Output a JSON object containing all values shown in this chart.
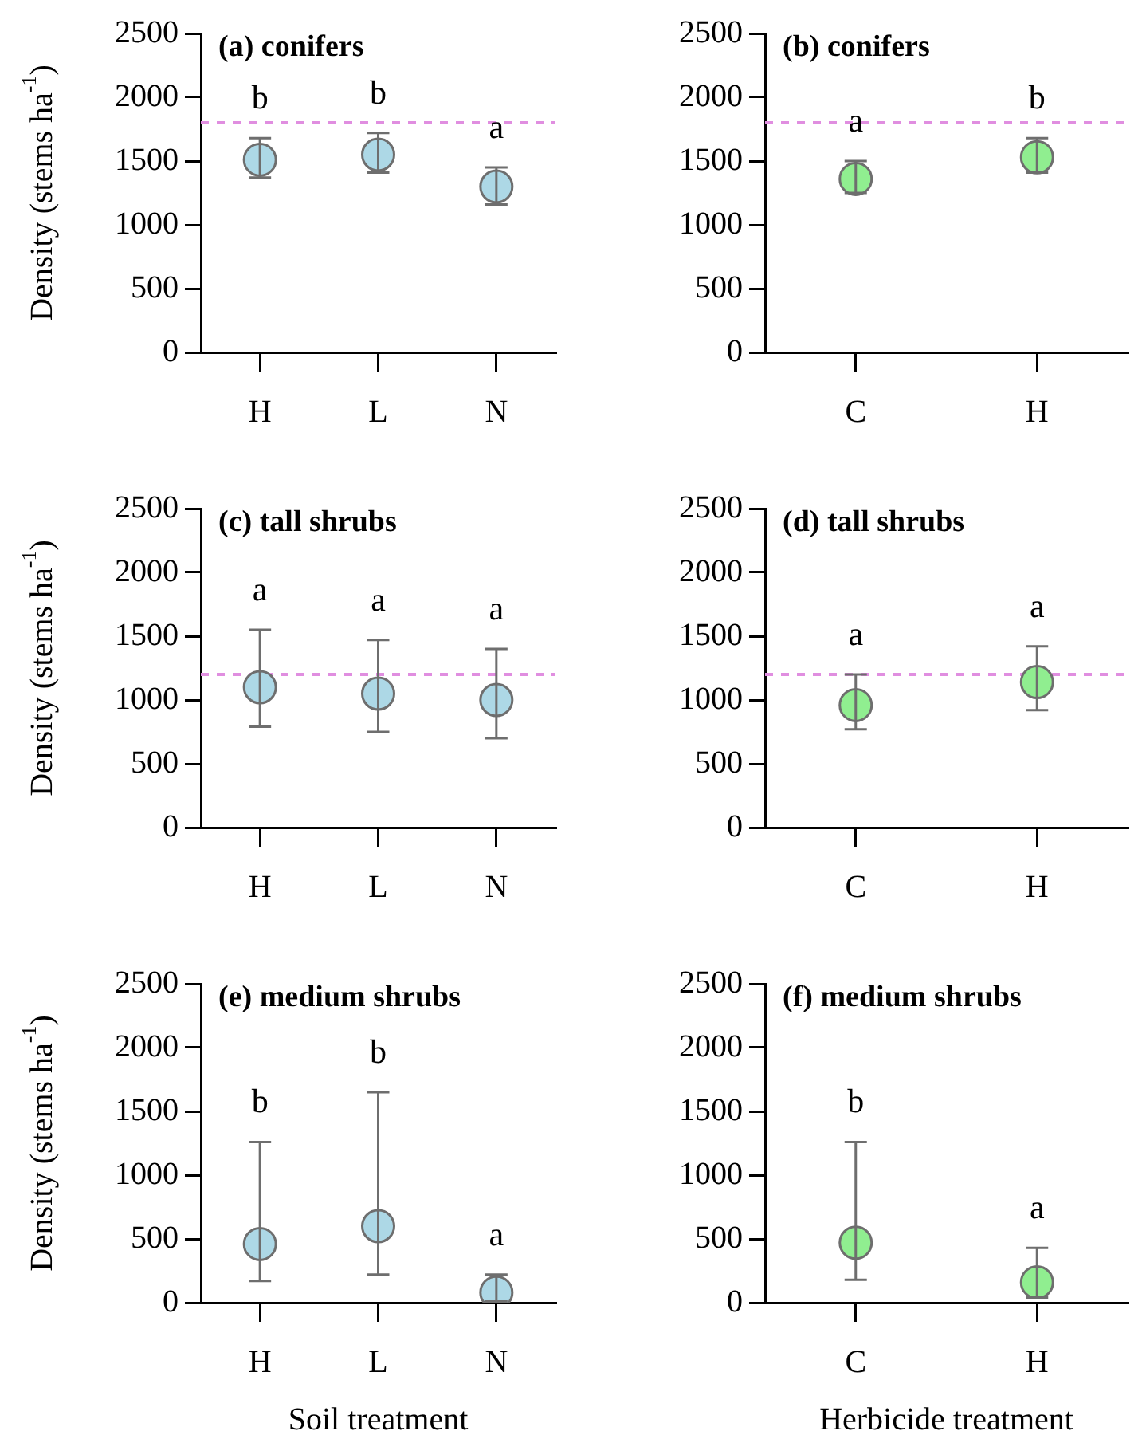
{
  "chart_data": [
    {
      "type": "scatter",
      "title": "(a) conifers",
      "ylabel": "Density (stems ha$^{-1}$)",
      "categories": [
        "H",
        "L",
        "N"
      ],
      "values": [
        1510,
        1550,
        1300
      ],
      "errors": [
        [
          1370,
          1680
        ],
        [
          1410,
          1720
        ],
        [
          1160,
          1450
        ]
      ],
      "color": "#add8e6",
      "marker": "circle",
      "ylim": [
        0,
        2500
      ],
      "yticks": [
        0,
        500,
        1000,
        1500,
        2000,
        2500
      ],
      "ref_lines": [
        {
          "axis": "y",
          "value": 1800,
          "color": "#e08ee0",
          "line_style": "dashed"
        }
      ],
      "annotations": [
        "b",
        "b",
        "a"
      ]
    },
    {
      "type": "scatter",
      "title": "(b) conifers",
      "categories": [
        "C",
        "H"
      ],
      "values": [
        1360,
        1530
      ],
      "errors": [
        [
          1250,
          1500
        ],
        [
          1410,
          1680
        ]
      ],
      "color": "#90ee90",
      "marker": "circle",
      "ylim": [
        0,
        2500
      ],
      "yticks": [
        0,
        500,
        1000,
        1500,
        2000,
        2500
      ],
      "ref_lines": [
        {
          "axis": "y",
          "value": 1800,
          "color": "#e08ee0",
          "line_style": "dashed"
        }
      ],
      "annotations": [
        "a",
        "b"
      ]
    },
    {
      "type": "scatter",
      "title": "(c) tall shrubs",
      "ylabel": "Density (stems ha$^{-1}$)",
      "categories": [
        "H",
        "L",
        "N"
      ],
      "values": [
        1100,
        1050,
        1000
      ],
      "errors": [
        [
          790,
          1550
        ],
        [
          750,
          1470
        ],
        [
          700,
          1400
        ]
      ],
      "color": "#add8e6",
      "marker": "circle",
      "ylim": [
        0,
        2500
      ],
      "yticks": [
        0,
        500,
        1000,
        1500,
        2000,
        2500
      ],
      "ref_lines": [
        {
          "axis": "y",
          "value": 1200,
          "color": "#e08ee0",
          "line_style": "dashed"
        }
      ],
      "annotations": [
        "a",
        "a",
        "a"
      ]
    },
    {
      "type": "scatter",
      "title": "(d) tall shrubs",
      "categories": [
        "C",
        "H"
      ],
      "values": [
        960,
        1140
      ],
      "errors": [
        [
          770,
          1200
        ],
        [
          920,
          1420
        ]
      ],
      "color": "#90ee90",
      "marker": "circle",
      "ylim": [
        0,
        2500
      ],
      "yticks": [
        0,
        500,
        1000,
        1500,
        2000,
        2500
      ],
      "ref_lines": [
        {
          "axis": "y",
          "value": 1200,
          "color": "#e08ee0",
          "line_style": "dashed"
        }
      ],
      "annotations": [
        "a",
        "a"
      ]
    },
    {
      "type": "scatter",
      "title": "(e) medium shrubs",
      "ylabel": "Density (stems ha$^{-1}$)",
      "xlabel": "Soil treatment",
      "categories": [
        "H",
        "L",
        "N"
      ],
      "values": [
        460,
        600,
        80
      ],
      "errors": [
        [
          170,
          1260
        ],
        [
          220,
          1650
        ],
        [
          10,
          220
        ]
      ],
      "color": "#add8e6",
      "marker": "circle",
      "ylim": [
        0,
        2500
      ],
      "yticks": [
        0,
        500,
        1000,
        1500,
        2000,
        2500
      ],
      "annotations": [
        "b",
        "b",
        "a"
      ]
    },
    {
      "type": "scatter",
      "title": "(f) medium shrubs",
      "xlabel": "Herbicide treatment",
      "categories": [
        "C",
        "H"
      ],
      "values": [
        470,
        160
      ],
      "errors": [
        [
          180,
          1260
        ],
        [
          40,
          430
        ]
      ],
      "color": "#90ee90",
      "marker": "circle",
      "ylim": [
        0,
        2500
      ],
      "yticks": [
        0,
        500,
        1000,
        1500,
        2000,
        2500
      ],
      "annotations": [
        "b",
        "a"
      ]
    }
  ]
}
